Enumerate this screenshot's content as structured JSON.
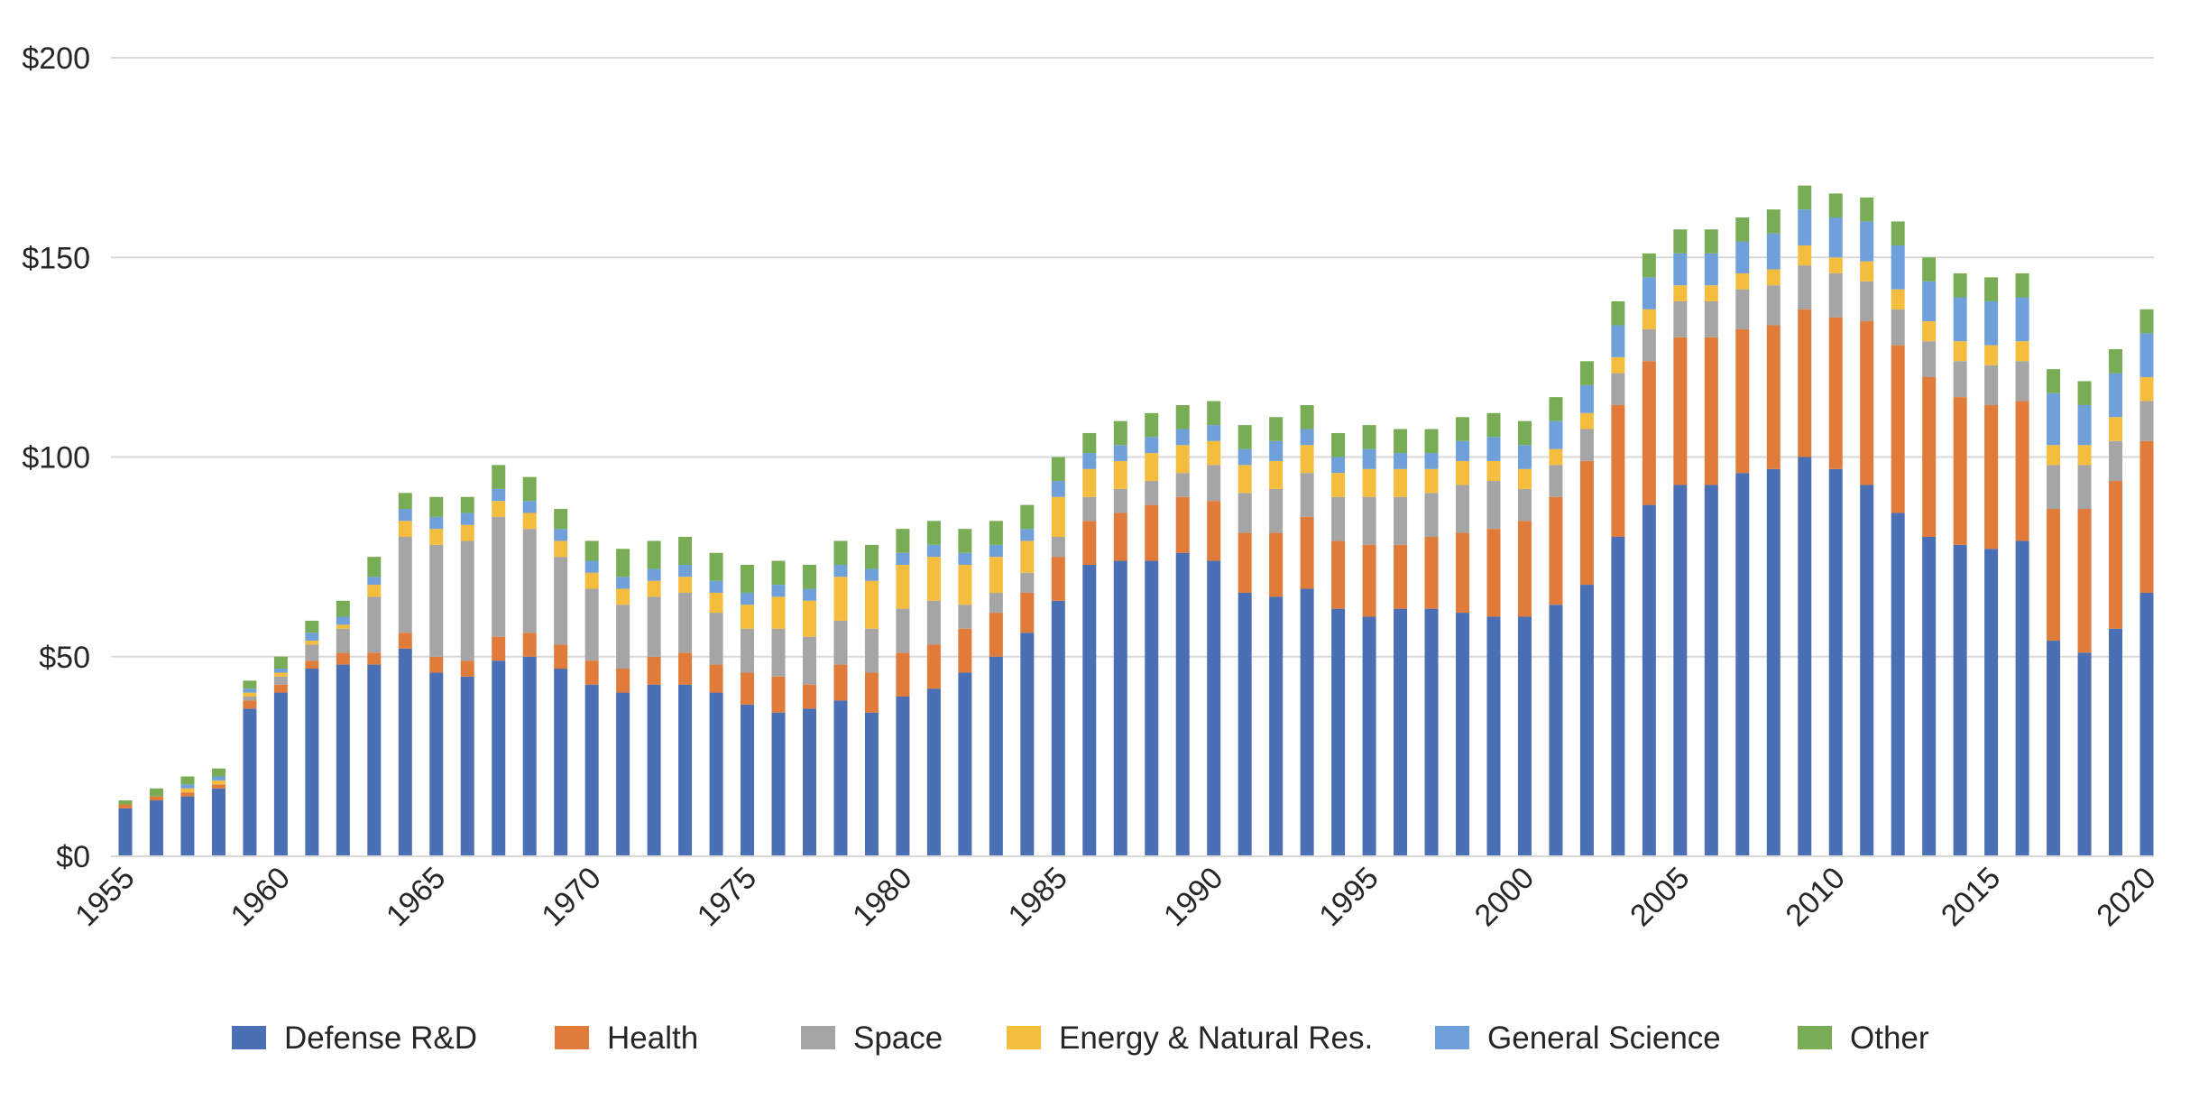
{
  "chart_data": {
    "type": "bar",
    "stacked": true,
    "title": "",
    "xlabel": "",
    "ylabel": "",
    "ylim": [
      0,
      200
    ],
    "yticks": [
      "$0",
      "$50",
      "$100",
      "$150",
      "$200"
    ],
    "ytick_values": [
      0,
      50,
      100,
      150,
      200
    ],
    "xtick_labels": [
      "1955",
      "1960",
      "1965",
      "1970",
      "1975",
      "1980",
      "1985",
      "1990",
      "1995",
      "2000",
      "2005",
      "2010",
      "2015",
      "2020"
    ],
    "grid": "horizontal",
    "legend_position": "bottom",
    "categories": [
      1955,
      1956,
      1957,
      1958,
      1959,
      1960,
      1961,
      1962,
      1963,
      1964,
      1965,
      1966,
      1967,
      1968,
      1969,
      1970,
      1971,
      1972,
      1973,
      1974,
      1975,
      1976,
      1977,
      1978,
      1979,
      1980,
      1981,
      1982,
      1983,
      1984,
      1985,
      1986,
      1987,
      1988,
      1989,
      1990,
      1991,
      1992,
      1993,
      1994,
      1995,
      1996,
      1997,
      1998,
      1999,
      2000,
      2001,
      2002,
      2003,
      2004,
      2005,
      2006,
      2007,
      2008,
      2009,
      2010,
      2011,
      2012,
      2013,
      2014,
      2015,
      2016,
      2017,
      2018,
      2019,
      2020
    ],
    "series": [
      {
        "name": "Defense R&D",
        "color": "#4A6FB5",
        "values": [
          12,
          14,
          15,
          17,
          37,
          41,
          47,
          48,
          48,
          52,
          46,
          45,
          49,
          50,
          47,
          43,
          41,
          43,
          43,
          41,
          38,
          36,
          37,
          39,
          36,
          40,
          42,
          46,
          50,
          56,
          64,
          73,
          74,
          74,
          76,
          74,
          66,
          65,
          67,
          62,
          60,
          62,
          62,
          61,
          60,
          60,
          63,
          68,
          80,
          88,
          93,
          93,
          96,
          97,
          100,
          97,
          93,
          86,
          80,
          78,
          77,
          79,
          54,
          51,
          57,
          66
        ]
      },
      {
        "name": "Health",
        "color": "#E07B3A",
        "values": [
          1,
          1,
          1,
          1,
          2,
          2,
          2,
          3,
          3,
          4,
          4,
          4,
          6,
          6,
          6,
          6,
          6,
          7,
          8,
          7,
          8,
          9,
          6,
          9,
          10,
          11,
          11,
          11,
          11,
          10,
          11,
          11,
          12,
          14,
          14,
          15,
          15,
          16,
          18,
          17,
          18,
          16,
          18,
          20,
          22,
          24,
          27,
          31,
          33,
          36,
          37,
          37,
          36,
          36,
          37,
          38,
          41,
          42,
          40,
          37,
          36,
          35,
          33,
          36,
          37,
          38
        ]
      },
      {
        "name": "Space",
        "color": "#A5A5A5",
        "values": [
          0,
          0,
          0,
          0,
          1,
          2,
          4,
          6,
          14,
          24,
          28,
          30,
          30,
          26,
          22,
          18,
          16,
          15,
          15,
          13,
          11,
          12,
          12,
          11,
          11,
          11,
          11,
          6,
          5,
          5,
          5,
          6,
          6,
          6,
          6,
          9,
          10,
          11,
          11,
          11,
          12,
          12,
          11,
          12,
          12,
          8,
          8,
          8,
          8,
          8,
          9,
          9,
          10,
          10,
          11,
          11,
          10,
          9,
          9,
          9,
          10,
          10,
          11,
          11,
          10,
          10
        ]
      },
      {
        "name": "Energy & Natural Res.",
        "color": "#F5BD3D",
        "values": [
          0,
          0,
          1,
          1,
          1,
          1,
          1,
          1,
          3,
          4,
          4,
          4,
          4,
          4,
          4,
          4,
          4,
          4,
          4,
          5,
          6,
          8,
          9,
          11,
          12,
          11,
          11,
          10,
          9,
          8,
          10,
          7,
          7,
          7,
          7,
          6,
          7,
          7,
          7,
          6,
          7,
          7,
          6,
          6,
          5,
          5,
          4,
          4,
          4,
          5,
          4,
          4,
          4,
          4,
          5,
          4,
          5,
          5,
          5,
          5,
          5,
          5,
          5,
          5,
          6,
          6
        ]
      },
      {
        "name": "General Science",
        "color": "#6FA0D9",
        "values": [
          0,
          0,
          1,
          1,
          1,
          1,
          2,
          2,
          2,
          3,
          3,
          3,
          3,
          3,
          3,
          3,
          3,
          3,
          3,
          3,
          3,
          3,
          3,
          3,
          3,
          3,
          3,
          3,
          3,
          3,
          4,
          4,
          4,
          4,
          4,
          4,
          4,
          5,
          4,
          4,
          5,
          4,
          4,
          5,
          6,
          6,
          7,
          7,
          8,
          8,
          8,
          8,
          8,
          9,
          9,
          10,
          10,
          11,
          10,
          11,
          11,
          11,
          13,
          10,
          11,
          11
        ]
      },
      {
        "name": "Other",
        "color": "#78AD56",
        "values": [
          1,
          2,
          2,
          2,
          2,
          3,
          3,
          4,
          5,
          4,
          5,
          4,
          6,
          6,
          5,
          5,
          7,
          7,
          7,
          7,
          7,
          6,
          6,
          6,
          6,
          6,
          6,
          6,
          6,
          6,
          6,
          5,
          6,
          6,
          6,
          6,
          6,
          6,
          6,
          6,
          6,
          6,
          6,
          6,
          6,
          6,
          6,
          6,
          6,
          6,
          6,
          6,
          6,
          6,
          6,
          6,
          6,
          6,
          6,
          6,
          6,
          6,
          6,
          6,
          6,
          6
        ]
      }
    ]
  }
}
